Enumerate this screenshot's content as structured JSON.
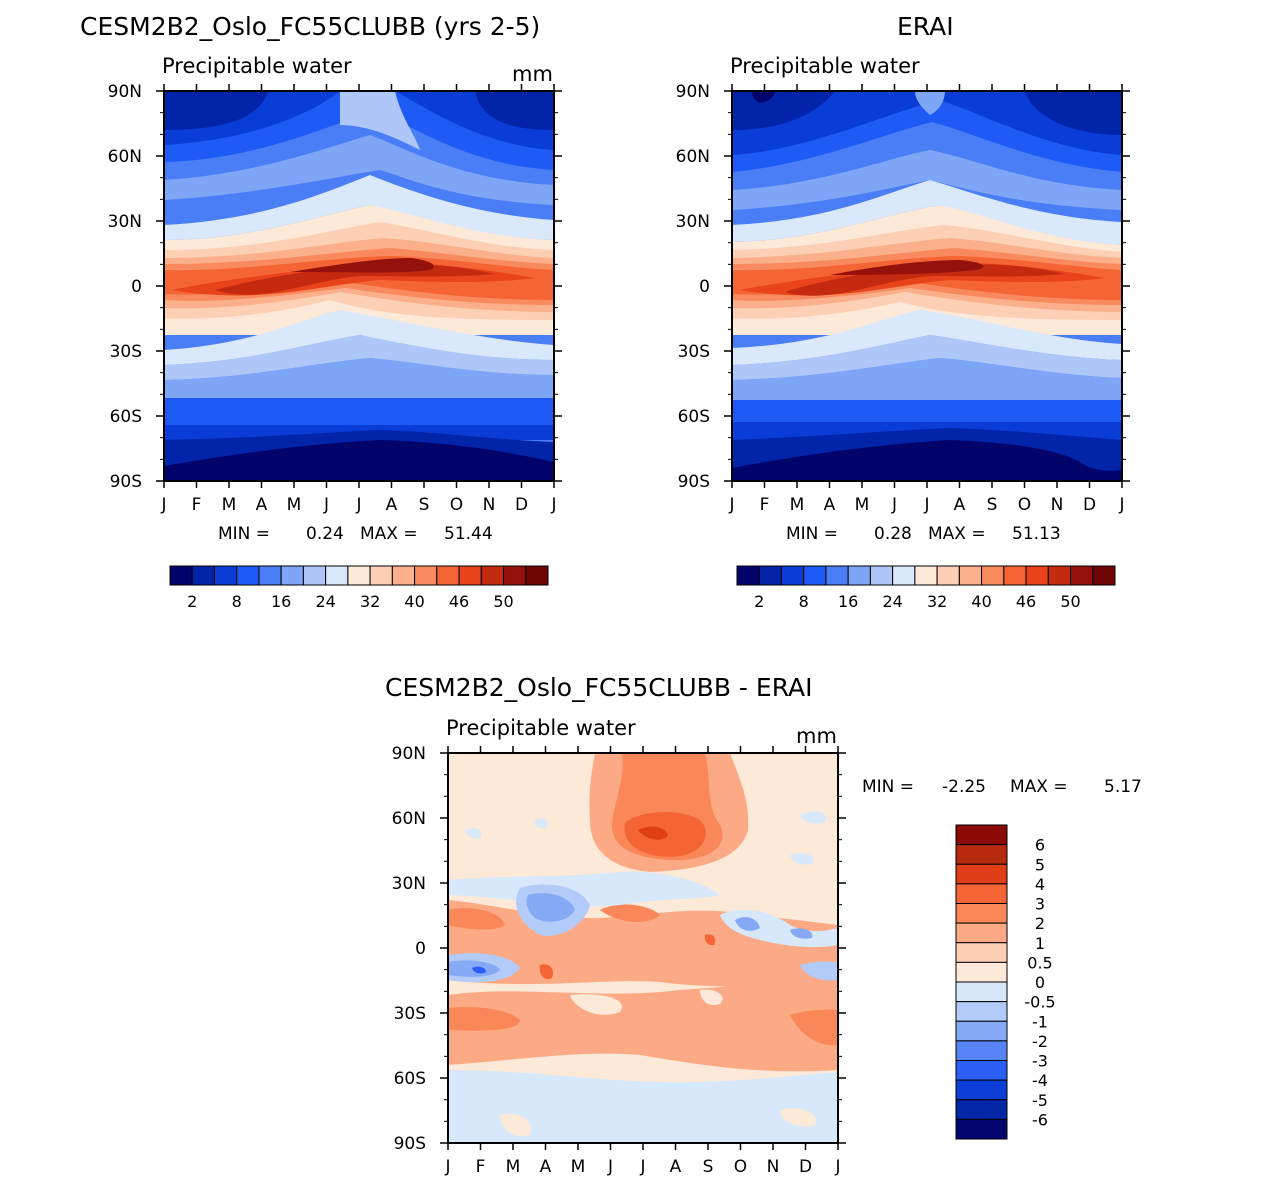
{
  "chart_data": [
    {
      "type": "heatmap",
      "id": "model",
      "title": "CESM2B2_Oslo_FC55CLUBB (yrs 2-5)",
      "subtitle": "Precipitable water",
      "units": "mm",
      "x_labels": [
        "J",
        "F",
        "M",
        "A",
        "M",
        "J",
        "J",
        "A",
        "S",
        "O",
        "N",
        "D",
        "J"
      ],
      "y_labels": [
        "90N",
        "60N",
        "30N",
        "0",
        "30S",
        "60S",
        "90S"
      ],
      "min_label": "MIN =",
      "min_value": "0.24",
      "max_label": "MAX =",
      "max_value": "51.44",
      "colorbar_labels": [
        "2",
        "8",
        "16",
        "24",
        "32",
        "40",
        "46",
        "50"
      ],
      "colorbar_colors": [
        "#03046b",
        "#0224a8",
        "#0a3cd8",
        "#1e5af5",
        "#4a7ef7",
        "#7fa5f7",
        "#aec7f8",
        "#d9e8fb",
        "#fde9d8",
        "#fdd0b5",
        "#fbb08b",
        "#f88a5e",
        "#f56434",
        "#e8431a",
        "#c42a10",
        "#94120b",
        "#6e0606"
      ]
    },
    {
      "type": "heatmap",
      "id": "obs",
      "title": "ERAI",
      "subtitle": "Precipitable water",
      "units": "",
      "x_labels": [
        "J",
        "F",
        "M",
        "A",
        "M",
        "J",
        "J",
        "A",
        "S",
        "O",
        "N",
        "D",
        "J"
      ],
      "y_labels": [
        "90N",
        "60N",
        "30N",
        "0",
        "30S",
        "60S",
        "90S"
      ],
      "min_label": "MIN =",
      "min_value": "0.28",
      "max_label": "MAX =",
      "max_value": "51.13",
      "colorbar_labels": [
        "2",
        "8",
        "16",
        "24",
        "32",
        "40",
        "46",
        "50"
      ],
      "colorbar_colors": [
        "#03046b",
        "#0224a8",
        "#0a3cd8",
        "#1e5af5",
        "#4a7ef7",
        "#7fa5f7",
        "#aec7f8",
        "#d9e8fb",
        "#fde9d8",
        "#fdd0b5",
        "#fbb08b",
        "#f88a5e",
        "#f56434",
        "#e8431a",
        "#c42a10",
        "#94120b",
        "#6e0606"
      ]
    },
    {
      "type": "heatmap",
      "id": "diff",
      "title": "CESM2B2_Oslo_FC55CLUBB - ERAI",
      "subtitle": "Precipitable water",
      "units": "mm",
      "x_labels": [
        "J",
        "F",
        "M",
        "A",
        "M",
        "J",
        "J",
        "A",
        "S",
        "O",
        "N",
        "D",
        "J"
      ],
      "y_labels": [
        "90N",
        "60N",
        "30N",
        "0",
        "30S",
        "60S",
        "90S"
      ],
      "min_label": "MIN =",
      "min_value": "-2.25",
      "max_label": "MAX =",
      "max_value": "5.17",
      "colorbar_labels": [
        "6",
        "5",
        "4",
        "3",
        "2",
        "1",
        "0.5",
        "0",
        "-0.5",
        "-1",
        "-2",
        "-3",
        "-4",
        "-5",
        "-6"
      ],
      "colorbar_colors": [
        "#8b0a06",
        "#b82a0e",
        "#e03e17",
        "#f56434",
        "#fa8757",
        "#fcaa85",
        "#fdd0b5",
        "#fde9d8",
        "#d8e8fb",
        "#b2cbf8",
        "#86a9f6",
        "#5684f4",
        "#2a5ef5",
        "#0d3fd8",
        "#0226a5",
        "#03066e"
      ]
    }
  ]
}
